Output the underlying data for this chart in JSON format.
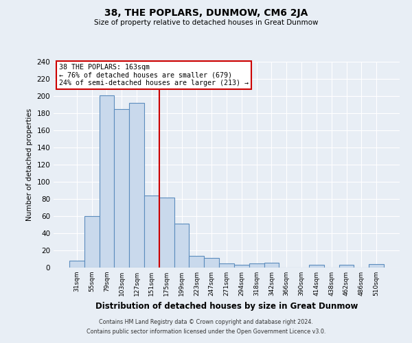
{
  "title": "38, THE POPLARS, DUNMOW, CM6 2JA",
  "subtitle": "Size of property relative to detached houses in Great Dunmow",
  "xlabel": "Distribution of detached houses by size in Great Dunmow",
  "ylabel": "Number of detached properties",
  "bar_labels": [
    "31sqm",
    "55sqm",
    "79sqm",
    "103sqm",
    "127sqm",
    "151sqm",
    "175sqm",
    "199sqm",
    "223sqm",
    "247sqm",
    "271sqm",
    "294sqm",
    "318sqm",
    "342sqm",
    "366sqm",
    "390sqm",
    "414sqm",
    "438sqm",
    "462sqm",
    "486sqm",
    "510sqm"
  ],
  "bar_values": [
    8,
    60,
    201,
    185,
    192,
    84,
    82,
    51,
    14,
    11,
    5,
    3,
    5,
    6,
    0,
    0,
    3,
    0,
    3,
    0,
    4
  ],
  "bar_color": "#c9d9ec",
  "bar_edge_color": "#5b8cbd",
  "vline_x": 5.5,
  "vline_color": "#cc0000",
  "annotation_title": "38 THE POPLARS: 163sqm",
  "annotation_line1": "← 76% of detached houses are smaller (679)",
  "annotation_line2": "24% of semi-detached houses are larger (213) →",
  "annotation_box_color": "#cc0000",
  "ylim": [
    0,
    240
  ],
  "yticks": [
    0,
    20,
    40,
    60,
    80,
    100,
    120,
    140,
    160,
    180,
    200,
    220,
    240
  ],
  "footer_line1": "Contains HM Land Registry data © Crown copyright and database right 2024.",
  "footer_line2": "Contains public sector information licensed under the Open Government Licence v3.0.",
  "background_color": "#e8eef5",
  "grid_color": "#ffffff"
}
